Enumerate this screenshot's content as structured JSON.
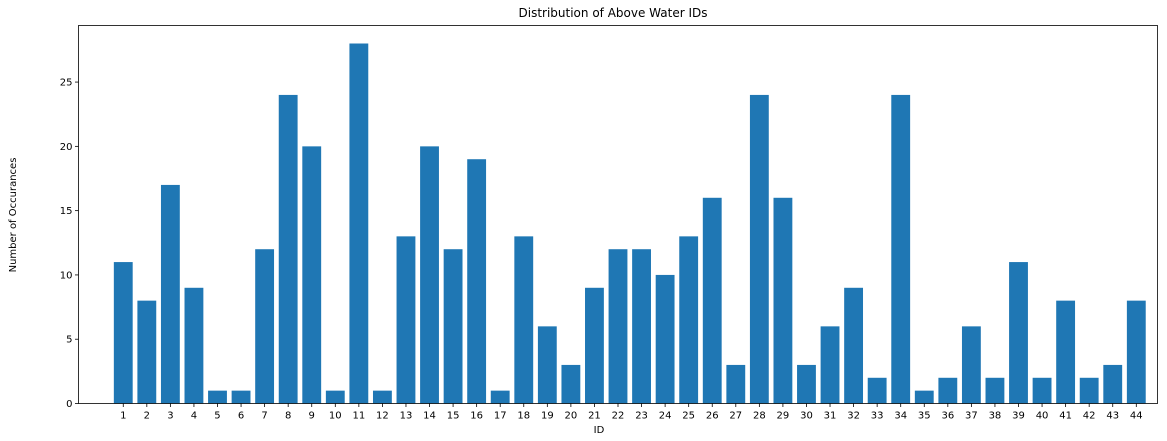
{
  "chart_data": {
    "type": "bar",
    "title": "Distribution of Above Water IDs",
    "xlabel": "ID",
    "ylabel": "Number of Occurances",
    "categories": [
      "1",
      "2",
      "3",
      "4",
      "5",
      "6",
      "7",
      "8",
      "9",
      "10",
      "11",
      "12",
      "13",
      "14",
      "15",
      "16",
      "17",
      "18",
      "19",
      "20",
      "21",
      "22",
      "23",
      "24",
      "25",
      "26",
      "27",
      "28",
      "29",
      "30",
      "31",
      "32",
      "33",
      "34",
      "35",
      "36",
      "37",
      "38",
      "39",
      "40",
      "41",
      "42",
      "43",
      "44"
    ],
    "values": [
      11,
      8,
      17,
      9,
      1,
      1,
      12,
      24,
      20,
      1,
      28,
      1,
      13,
      20,
      12,
      19,
      1,
      13,
      6,
      3,
      9,
      12,
      12,
      10,
      13,
      16,
      3,
      24,
      16,
      3,
      6,
      9,
      2,
      24,
      1,
      2,
      6,
      2,
      11,
      2,
      8,
      2,
      3,
      8
    ],
    "yticks": [
      0,
      5,
      10,
      15,
      20,
      25
    ],
    "ylim": [
      0,
      29.4
    ],
    "grid": false,
    "bar_color": "#1f77b4"
  }
}
